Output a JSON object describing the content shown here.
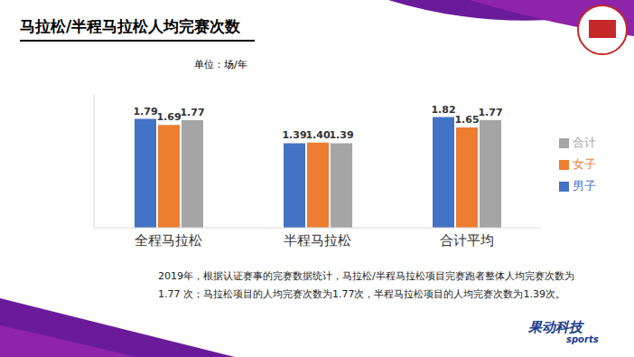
{
  "chart_data": {
    "type": "bar",
    "title": "马拉松/半程马拉松人均完赛次数",
    "subtitle": "单位：场/年",
    "categories": [
      "全程马拉松",
      "半程马拉松",
      "合计平均"
    ],
    "series": [
      {
        "name": "男子",
        "color": "#4472c4",
        "values": [
          1.79,
          1.39,
          1.82
        ],
        "value_labels": [
          "1.79",
          "1.39",
          "1.82"
        ]
      },
      {
        "name": "女子",
        "color": "#ed7d31",
        "values": [
          1.69,
          1.4,
          1.65
        ],
        "value_labels": [
          "1.69",
          "1.40",
          "1.65"
        ]
      },
      {
        "name": "合计",
        "color": "#a5a5a5",
        "values": [
          1.77,
          1.39,
          1.77
        ],
        "value_labels": [
          "1.77",
          "1.39",
          "1.77"
        ]
      }
    ],
    "ylim": [
      0,
      2.2
    ],
    "tick_labels": "x",
    "data_labels": true,
    "legend": "right",
    "grid": false,
    "annotations": [
      "2019年，根据认证赛事的完赛数据统计，马拉松/半程马拉松项目完赛跑者整体人均完赛次数为1.77 次；马拉松项目的人均完赛次数为1.77次，半程马拉松项目的人均完赛次数为1.39次。"
    ],
    "brand": "果动科技",
    "brand_sub": "sports"
  }
}
